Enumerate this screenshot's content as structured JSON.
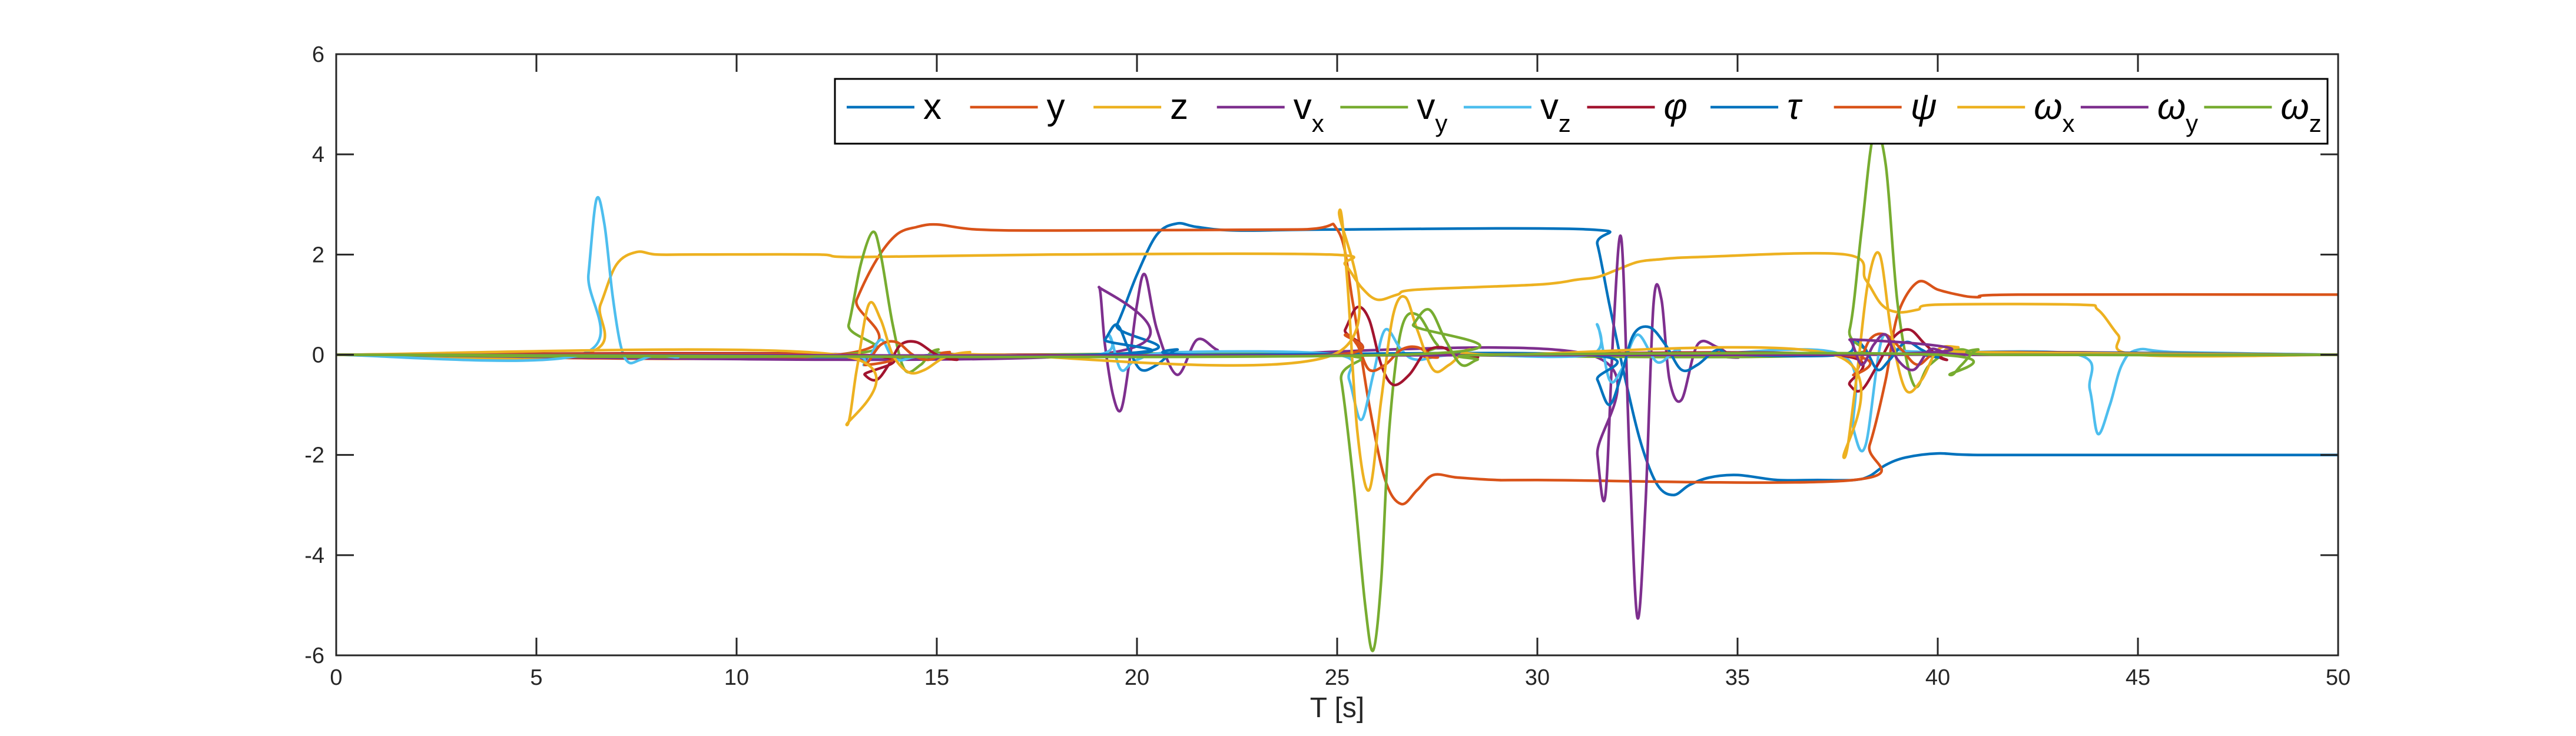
{
  "chart_data": {
    "type": "line",
    "title": "",
    "xlabel": "T [s]",
    "ylabel": "",
    "xlim": [
      0,
      50
    ],
    "ylim": [
      -6,
      6
    ],
    "xticks": [
      0,
      5,
      10,
      15,
      20,
      25,
      30,
      35,
      40,
      45,
      50
    ],
    "yticks": [
      -6,
      -4,
      -2,
      0,
      2,
      4,
      6
    ],
    "grid": false,
    "legend_position": "top-right",
    "series": [
      {
        "name": "x",
        "legend_main": "x",
        "legend_sub": "",
        "greek": false,
        "color": "#0072BD",
        "x": [
          0,
          19.0,
          19.5,
          20.0,
          20.5,
          21.0,
          21.5,
          22.5,
          25.0,
          31.3,
          31.5,
          31.8,
          32.2,
          32.6,
          33.0,
          33.4,
          33.8,
          34.3,
          35.0,
          36.0,
          37.0,
          37.9,
          38.3,
          38.7,
          39.2,
          40.0,
          41.0,
          45,
          50
        ],
        "y": [
          0,
          0,
          0.6,
          1.6,
          2.4,
          2.62,
          2.55,
          2.48,
          2.5,
          2.5,
          2.2,
          1.0,
          -0.5,
          -1.8,
          -2.6,
          -2.8,
          -2.6,
          -2.45,
          -2.4,
          -2.5,
          -2.5,
          -2.5,
          -2.42,
          -2.2,
          -2.05,
          -1.97,
          -2.0,
          -2.0,
          -2.0
        ]
      },
      {
        "name": "y",
        "legend_main": "y",
        "legend_sub": "",
        "greek": false,
        "color": "#D95319",
        "x": [
          0,
          12.5,
          13.0,
          13.5,
          14.0,
          14.5,
          15.0,
          16.0,
          18.0,
          24.0,
          25.0,
          25.4,
          25.8,
          26.2,
          26.6,
          27.0,
          27.4,
          28.0,
          29.0,
          30.0,
          37.9,
          38.3,
          38.7,
          39.0,
          39.5,
          40.0,
          40.5,
          41.0,
          42.0,
          50
        ],
        "y": [
          0,
          0,
          1.1,
          1.9,
          2.4,
          2.55,
          2.6,
          2.5,
          2.48,
          2.5,
          2.5,
          1.0,
          -1.0,
          -2.5,
          -2.98,
          -2.7,
          -2.4,
          -2.45,
          -2.5,
          -2.5,
          -2.5,
          -1.8,
          -0.5,
          0.8,
          1.45,
          1.3,
          1.2,
          1.15,
          1.2,
          1.2
        ]
      },
      {
        "name": "z",
        "legend_main": "z",
        "legend_sub": "",
        "greek": false,
        "color": "#EDB120",
        "x": [
          0,
          6.1,
          6.6,
          7.0,
          7.5,
          8.0,
          9.0,
          12.0,
          13.0,
          18.0,
          24.8,
          25.2,
          25.6,
          26.0,
          26.5,
          27.0,
          30.0,
          31.0,
          31.5,
          32.0,
          32.5,
          33.0,
          34.0,
          37.7,
          38.2,
          38.6,
          39.0,
          39.5,
          40.0,
          43.5,
          44.0,
          44.5,
          45.0,
          50
        ],
        "y": [
          0,
          0,
          1.0,
          1.8,
          2.05,
          2.0,
          2.0,
          2.0,
          1.95,
          2.0,
          2.0,
          1.8,
          1.35,
          1.1,
          1.2,
          1.3,
          1.4,
          1.5,
          1.55,
          1.7,
          1.85,
          1.9,
          1.95,
          2.0,
          1.5,
          1.0,
          0.85,
          0.9,
          1.0,
          1.0,
          0.9,
          0.4,
          0.0,
          0.0
        ]
      },
      {
        "name": "v_x",
        "legend_main": "v",
        "legend_sub": "x",
        "greek": false,
        "color": "#7E2F8E",
        "x": [
          0,
          18.9,
          19.05,
          19.2,
          19.4,
          19.6,
          19.8,
          20.0,
          20.2,
          20.5,
          21.0,
          21.5,
          22.0,
          22.5,
          31.3,
          31.5,
          31.7,
          31.9,
          32.1,
          32.3,
          32.5,
          32.7,
          32.9,
          33.1,
          33.3,
          33.6,
          34.0,
          34.5,
          35.0,
          36.0,
          50
        ],
        "y": [
          0,
          0,
          1.35,
          0.2,
          -0.8,
          -1.1,
          -0.2,
          1.0,
          1.6,
          0.5,
          -0.4,
          0.3,
          0.1,
          0.0,
          0,
          -2.0,
          -2.8,
          0.5,
          2.3,
          -2.0,
          -5.25,
          -3.0,
          1.0,
          1.1,
          -0.5,
          -0.9,
          0.2,
          0.15,
          -0.05,
          0,
          0
        ]
      },
      {
        "name": "v_y",
        "legend_main": "v",
        "legend_sub": "y",
        "greek": false,
        "color": "#77AC30",
        "x": [
          0,
          12.5,
          12.8,
          13.1,
          13.4,
          13.6,
          13.9,
          14.2,
          14.6,
          15.0,
          16.0,
          24.9,
          25.1,
          25.4,
          25.7,
          25.9,
          26.1,
          26.3,
          26.6,
          27.0,
          27.5,
          28.0,
          37.4,
          37.8,
          38.1,
          38.4,
          38.7,
          39.0,
          39.4,
          39.8,
          40.5,
          42.0,
          50
        ],
        "y": [
          0,
          0,
          0.6,
          1.8,
          2.45,
          2.0,
          0.6,
          -0.3,
          -0.2,
          0.1,
          0.0,
          0,
          -0.5,
          -2.5,
          -5.0,
          -5.9,
          -4.5,
          -1.5,
          0.5,
          0.8,
          0.2,
          0,
          0,
          0.5,
          2.5,
          4.4,
          3.8,
          1.0,
          -0.6,
          -0.2,
          0.1,
          0,
          0
        ]
      },
      {
        "name": "v_z",
        "legend_main": "v",
        "legend_sub": "z",
        "greek": false,
        "color": "#4DBEEE",
        "x": [
          0,
          6.1,
          6.3,
          6.5,
          6.7,
          6.9,
          7.1,
          7.3,
          7.6,
          8.0,
          8.5,
          9.0,
          12.8,
          13.2,
          13.6,
          14.0,
          15.0,
          19.0,
          19.3,
          19.6,
          20.0,
          21.0,
          25.0,
          25.3,
          25.6,
          25.9,
          26.2,
          26.6,
          27.0,
          28.0,
          31.3,
          31.5,
          31.8,
          32.1,
          32.5,
          33.0,
          33.5,
          34.0,
          37.6,
          37.9,
          38.2,
          38.6,
          39.0,
          40.0,
          43.5,
          43.8,
          44.0,
          44.3,
          44.6,
          45.0,
          46.0,
          50
        ],
        "y": [
          0,
          0,
          1.6,
          3.1,
          2.6,
          1.2,
          0.2,
          -0.15,
          -0.1,
          0.0,
          -0.05,
          0.0,
          0,
          -0.2,
          0.3,
          -0.1,
          0,
          0,
          0.4,
          -0.3,
          -0.1,
          0.05,
          0,
          -0.5,
          -1.3,
          -0.4,
          0.5,
          0.1,
          -0.1,
          0,
          0,
          0.6,
          -0.5,
          -0.3,
          0.4,
          -0.15,
          0.1,
          0,
          0,
          -1.5,
          -1.8,
          0.3,
          0.1,
          0.05,
          0,
          -0.7,
          -1.58,
          -1.0,
          -0.2,
          0.1,
          0.05,
          0
        ]
      },
      {
        "name": "phi",
        "legend_main": "φ",
        "legend_sub": "",
        "greek": true,
        "color": "#A2142F",
        "x": [
          0,
          12.9,
          13.2,
          13.5,
          13.8,
          14.1,
          14.5,
          15.0,
          15.5,
          16.0,
          24.9,
          25.2,
          25.5,
          25.8,
          26.1,
          26.4,
          26.8,
          27.2,
          27.6,
          28.0,
          28.5,
          29.0,
          37.4,
          37.8,
          38.1,
          38.5,
          38.9,
          39.3,
          39.7,
          40.2,
          41.0,
          50
        ],
        "y": [
          0,
          0,
          -0.4,
          -0.5,
          -0.2,
          0.2,
          0.25,
          0.0,
          -0.1,
          0.0,
          0,
          0.5,
          0.95,
          0.7,
          -0.2,
          -0.6,
          -0.4,
          0.05,
          0.15,
          0.0,
          -0.05,
          0,
          0,
          -0.6,
          -0.7,
          -0.2,
          0.35,
          0.5,
          0.2,
          -0.1,
          0.05,
          0
        ]
      },
      {
        "name": "tau",
        "legend_main": "τ",
        "legend_sub": "",
        "greek": true,
        "color": "#0072BD",
        "x": [
          0,
          18.9,
          19.2,
          19.5,
          19.8,
          20.1,
          20.5,
          21.0,
          21.5,
          31.2,
          31.5,
          31.8,
          32.1,
          32.4,
          32.8,
          33.2,
          33.6,
          34.0,
          34.5,
          35.0,
          37.6,
          37.9,
          38.2,
          38.5,
          38.8,
          39.2,
          39.6,
          40.0,
          40.5,
          50
        ],
        "y": [
          0,
          0,
          0.3,
          0.6,
          0.1,
          -0.3,
          -0.2,
          0.1,
          0,
          0,
          -0.5,
          -1.0,
          -0.4,
          0.4,
          0.55,
          0.2,
          -0.3,
          -0.2,
          0.1,
          0,
          0,
          0.3,
          0.1,
          -0.3,
          -0.1,
          0.25,
          0.1,
          -0.05,
          0.05,
          0
        ]
      },
      {
        "name": "psi",
        "legend_main": "ψ",
        "legend_sub": "",
        "greek": true,
        "color": "#D95319",
        "x": [
          0,
          12.9,
          13.2,
          13.6,
          14.0,
          14.4,
          14.8,
          15.3,
          16.0,
          24.9,
          25.2,
          25.5,
          25.8,
          26.2,
          26.6,
          27.0,
          27.5,
          28.0,
          37.5,
          37.9,
          38.3,
          38.7,
          39.1,
          39.5,
          40.0,
          41.0,
          50
        ],
        "y": [
          0,
          0,
          -0.2,
          0.2,
          0.25,
          0.0,
          -0.1,
          0.05,
          0,
          0,
          0.4,
          0.2,
          -0.3,
          -0.2,
          0.1,
          0.15,
          -0.05,
          0,
          0,
          -0.4,
          0.3,
          0.4,
          0.1,
          -0.2,
          0.05,
          0,
          0
        ]
      },
      {
        "name": "omega_x",
        "legend_main": "ω",
        "legend_sub": "x",
        "greek": true,
        "color": "#EDB120",
        "x": [
          0,
          12.5,
          12.75,
          13.0,
          13.3,
          13.6,
          13.9,
          14.3,
          14.7,
          15.2,
          15.8,
          16.5,
          24.9,
          25.05,
          25.25,
          25.5,
          25.8,
          26.1,
          26.4,
          26.7,
          27.0,
          27.4,
          27.8,
          28.3,
          29.0,
          37.4,
          37.65,
          37.95,
          38.25,
          38.55,
          38.85,
          39.2,
          39.6,
          40.0,
          40.5,
          41.0,
          50
        ],
        "y": [
          0,
          0,
          -1.4,
          -0.3,
          1.0,
          0.7,
          0.0,
          -0.35,
          -0.3,
          -0.05,
          0.05,
          0.0,
          0,
          2.85,
          1.5,
          -1.5,
          -2.7,
          -0.9,
          0.8,
          1.15,
          0.5,
          -0.3,
          -0.2,
          0.1,
          0,
          0,
          -2.05,
          -0.6,
          1.4,
          2.0,
          0.4,
          -0.7,
          -0.5,
          0.1,
          0.15,
          0.05,
          0
        ]
      },
      {
        "name": "omega_y",
        "legend_main": "ω",
        "legend_sub": "y",
        "greek": true,
        "color": "#7E2F8E",
        "x": [
          0,
          37.5,
          37.8,
          38.1,
          38.4,
          38.7,
          39.0,
          39.4,
          39.8,
          40.2,
          41.0,
          50
        ],
        "y": [
          0,
          0,
          0.3,
          -0.2,
          0.2,
          0.4,
          -0.1,
          -0.3,
          0.1,
          0.05,
          0,
          0
        ]
      },
      {
        "name": "omega_z",
        "legend_main": "ω",
        "legend_sub": "z",
        "greek": true,
        "color": "#77AC30",
        "x": [
          0,
          26.5,
          26.9,
          27.3,
          27.7,
          28.1,
          28.5,
          29.0,
          40.0,
          40.3,
          40.6,
          41.0,
          41.5,
          50
        ],
        "y": [
          0,
          0,
          0.6,
          0.9,
          0.3,
          -0.2,
          -0.1,
          0,
          0,
          -0.4,
          -0.2,
          0.1,
          0,
          0
        ]
      }
    ]
  }
}
